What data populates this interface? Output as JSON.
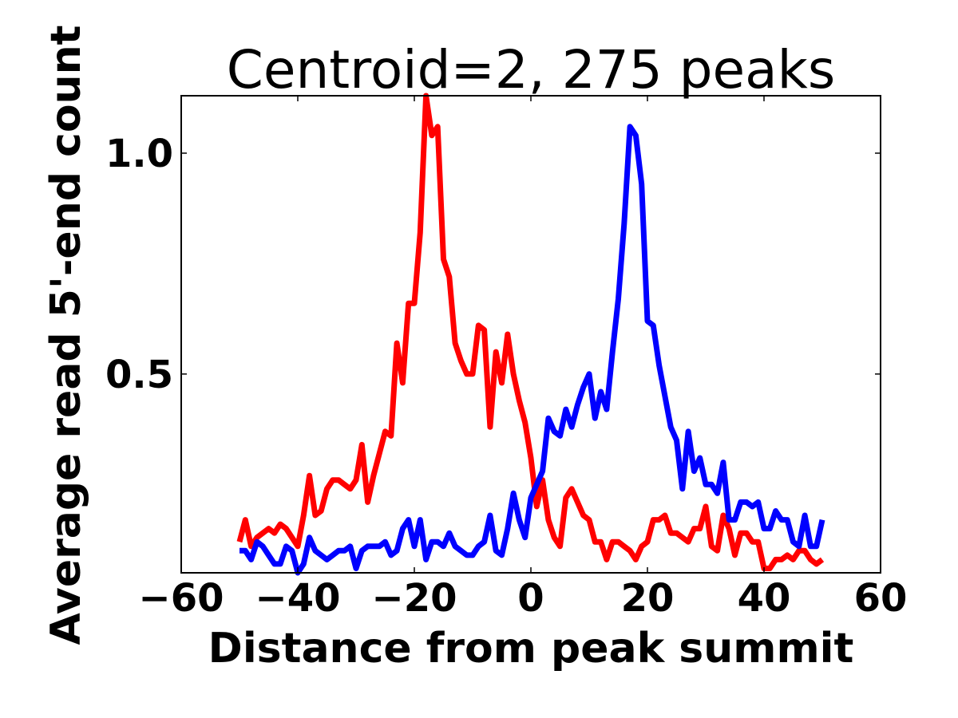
{
  "chart_data": {
    "type": "line",
    "title": "Centroid=2, 275 peaks",
    "xlabel": "Distance from peak summit",
    "ylabel": "Average read 5'-end count",
    "xlim": [
      -60,
      60
    ],
    "ylim": [
      0.05,
      1.13
    ],
    "x_ticks": [
      -60,
      -40,
      -20,
      0,
      20,
      40,
      60
    ],
    "x_tick_labels": [
      "−60",
      "−40",
      "−20",
      "0",
      "20",
      "40",
      "60"
    ],
    "y_ticks": [
      0.5,
      1.0
    ],
    "y_tick_labels": [
      "0.5",
      "1.0"
    ],
    "grid": false,
    "legend": "none",
    "x": [
      -50,
      -49,
      -48,
      -47,
      -46,
      -45,
      -44,
      -43,
      -42,
      -41,
      -40,
      -39,
      -38,
      -37,
      -36,
      -35,
      -34,
      -33,
      -32,
      -31,
      -30,
      -29,
      -28,
      -27,
      -26,
      -25,
      -24,
      -23,
      -22,
      -21,
      -20,
      -19,
      -18,
      -17,
      -16,
      -15,
      -14,
      -13,
      -12,
      -11,
      -10,
      -9,
      -8,
      -7,
      -6,
      -5,
      -4,
      -3,
      -2,
      -1,
      0,
      1,
      2,
      3,
      4,
      5,
      6,
      7,
      8,
      9,
      10,
      11,
      12,
      13,
      14,
      15,
      16,
      17,
      18,
      19,
      20,
      21,
      22,
      23,
      24,
      25,
      26,
      27,
      28,
      29,
      30,
      31,
      32,
      33,
      34,
      35,
      36,
      37,
      38,
      39,
      40,
      41,
      42,
      43,
      44,
      45,
      46,
      47,
      48,
      49,
      50
    ],
    "series": [
      {
        "color": "#ff0000",
        "values": [
          0.12,
          0.17,
          0.11,
          0.13,
          0.14,
          0.15,
          0.14,
          0.16,
          0.15,
          0.13,
          0.11,
          0.18,
          0.27,
          0.18,
          0.19,
          0.24,
          0.26,
          0.26,
          0.25,
          0.24,
          0.26,
          0.34,
          0.21,
          0.27,
          0.32,
          0.37,
          0.36,
          0.57,
          0.48,
          0.66,
          0.66,
          0.82,
          1.13,
          1.04,
          1.06,
          0.76,
          0.72,
          0.57,
          0.53,
          0.5,
          0.5,
          0.61,
          0.6,
          0.38,
          0.55,
          0.48,
          0.59,
          0.5,
          0.44,
          0.39,
          0.31,
          0.2,
          0.26,
          0.17,
          0.13,
          0.11,
          0.22,
          0.24,
          0.21,
          0.18,
          0.17,
          0.12,
          0.12,
          0.08,
          0.12,
          0.12,
          0.11,
          0.1,
          0.08,
          0.11,
          0.12,
          0.17,
          0.17,
          0.18,
          0.14,
          0.14,
          0.13,
          0.12,
          0.15,
          0.15,
          0.2,
          0.11,
          0.1,
          0.18,
          0.15,
          0.09,
          0.14,
          0.14,
          0.12,
          0.12,
          0.06,
          0.06,
          0.08,
          0.08,
          0.09,
          0.08,
          0.1,
          0.1,
          0.08,
          0.07,
          0.08
        ]
      },
      {
        "color": "#0000ff",
        "values": [
          0.1,
          0.1,
          0.08,
          0.12,
          0.11,
          0.09,
          0.07,
          0.07,
          0.11,
          0.1,
          0.05,
          0.07,
          0.13,
          0.1,
          0.09,
          0.08,
          0.09,
          0.1,
          0.1,
          0.11,
          0.06,
          0.1,
          0.11,
          0.11,
          0.11,
          0.12,
          0.09,
          0.1,
          0.15,
          0.17,
          0.11,
          0.17,
          0.08,
          0.12,
          0.12,
          0.11,
          0.14,
          0.11,
          0.1,
          0.09,
          0.09,
          0.11,
          0.12,
          0.18,
          0.1,
          0.09,
          0.15,
          0.23,
          0.17,
          0.13,
          0.22,
          0.25,
          0.28,
          0.4,
          0.37,
          0.36,
          0.42,
          0.38,
          0.43,
          0.47,
          0.5,
          0.4,
          0.46,
          0.42,
          0.55,
          0.67,
          0.84,
          1.06,
          1.04,
          0.93,
          0.62,
          0.61,
          0.52,
          0.45,
          0.38,
          0.35,
          0.24,
          0.37,
          0.28,
          0.31,
          0.25,
          0.25,
          0.23,
          0.3,
          0.17,
          0.17,
          0.21,
          0.21,
          0.2,
          0.21,
          0.15,
          0.15,
          0.19,
          0.17,
          0.17,
          0.12,
          0.11,
          0.18,
          0.11,
          0.11,
          0.17
        ]
      }
    ]
  }
}
